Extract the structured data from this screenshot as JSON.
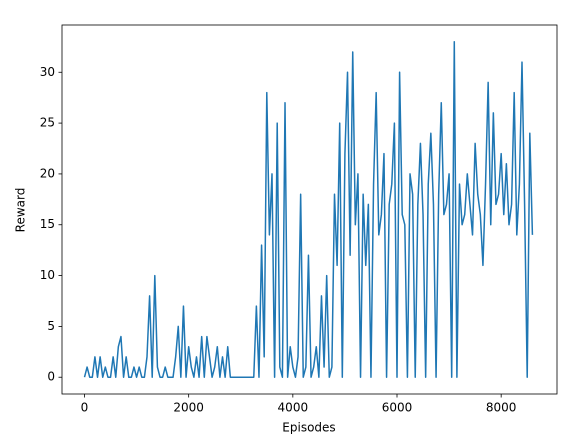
{
  "chart_data": {
    "type": "line",
    "xlabel": "Episodes",
    "ylabel": "Reward",
    "color": "#1f77b4",
    "xlim": [
      -432,
      9072
    ],
    "ylim": [
      -1.65,
      34.65
    ],
    "xticks": [
      0,
      2000,
      4000,
      6000,
      8000
    ],
    "yticks": [
      0,
      5,
      10,
      15,
      20,
      25,
      30
    ],
    "x": [
      0,
      50,
      100,
      150,
      200,
      250,
      300,
      350,
      400,
      450,
      500,
      550,
      600,
      650,
      700,
      750,
      800,
      850,
      900,
      950,
      1000,
      1050,
      1100,
      1150,
      1200,
      1250,
      1300,
      1350,
      1400,
      1450,
      1500,
      1550,
      1600,
      1650,
      1700,
      1750,
      1800,
      1850,
      1900,
      1950,
      2000,
      2050,
      2100,
      2150,
      2200,
      2250,
      2300,
      2350,
      2400,
      2450,
      2500,
      2550,
      2600,
      2650,
      2700,
      2750,
      2800,
      2850,
      2900,
      2950,
      3000,
      3050,
      3100,
      3150,
      3200,
      3250,
      3300,
      3350,
      3400,
      3450,
      3500,
      3550,
      3600,
      3650,
      3700,
      3750,
      3800,
      3850,
      3900,
      3950,
      4000,
      4050,
      4100,
      4150,
      4200,
      4250,
      4300,
      4350,
      4400,
      4450,
      4500,
      4550,
      4600,
      4650,
      4700,
      4750,
      4800,
      4850,
      4900,
      4950,
      5000,
      5050,
      5100,
      5150,
      5200,
      5250,
      5300,
      5350,
      5400,
      5450,
      5500,
      5550,
      5600,
      5650,
      5700,
      5750,
      5800,
      5850,
      5900,
      5950,
      6000,
      6050,
      6100,
      6150,
      6200,
      6250,
      6300,
      6350,
      6400,
      6450,
      6500,
      6550,
      6600,
      6650,
      6700,
      6750,
      6800,
      6850,
      6900,
      6950,
      7000,
      7050,
      7100,
      7150,
      7200,
      7250,
      7300,
      7350,
      7400,
      7450,
      7500,
      7550,
      7600,
      7650,
      7700,
      7750,
      7800,
      7850,
      7900,
      7950,
      8000,
      8050,
      8100,
      8150,
      8200,
      8250,
      8300,
      8350,
      8400,
      8450,
      8500,
      8550,
      8600
    ],
    "values": [
      0,
      1,
      0,
      0,
      2,
      0,
      2,
      0,
      1,
      0,
      0,
      2,
      0,
      3,
      4,
      0,
      2,
      0,
      0,
      1,
      0,
      1,
      0,
      0,
      2,
      8,
      0,
      10,
      1,
      0,
      0,
      1,
      0,
      0,
      0,
      2,
      5,
      0,
      7,
      0,
      3,
      1,
      0,
      2,
      0,
      4,
      0,
      4,
      2,
      0,
      1,
      3,
      0,
      2,
      0,
      3,
      0,
      0,
      0,
      0,
      0,
      0,
      0,
      0,
      0,
      0,
      7,
      0,
      13,
      2,
      28,
      14,
      20,
      0,
      25,
      1,
      0,
      27,
      0,
      3,
      1,
      0,
      2,
      18,
      0,
      1,
      12,
      0,
      1,
      3,
      0,
      8,
      1,
      10,
      0,
      1,
      18,
      11,
      25,
      0,
      22,
      30,
      12,
      32,
      15,
      20,
      0,
      18,
      11,
      17,
      0,
      19,
      28,
      14,
      16,
      22,
      0,
      17,
      19,
      25,
      0,
      30,
      16,
      15,
      0,
      20,
      18,
      0,
      17,
      23,
      16,
      0,
      19,
      24,
      17,
      0,
      18,
      27,
      16,
      17,
      20,
      0,
      33,
      0,
      19,
      15,
      16,
      20,
      17,
      14,
      23,
      18,
      16,
      11,
      19,
      29,
      15,
      26,
      17,
      18,
      22,
      16,
      21,
      15,
      17,
      28,
      14,
      19,
      31,
      17,
      0,
      24,
      14
    ]
  }
}
